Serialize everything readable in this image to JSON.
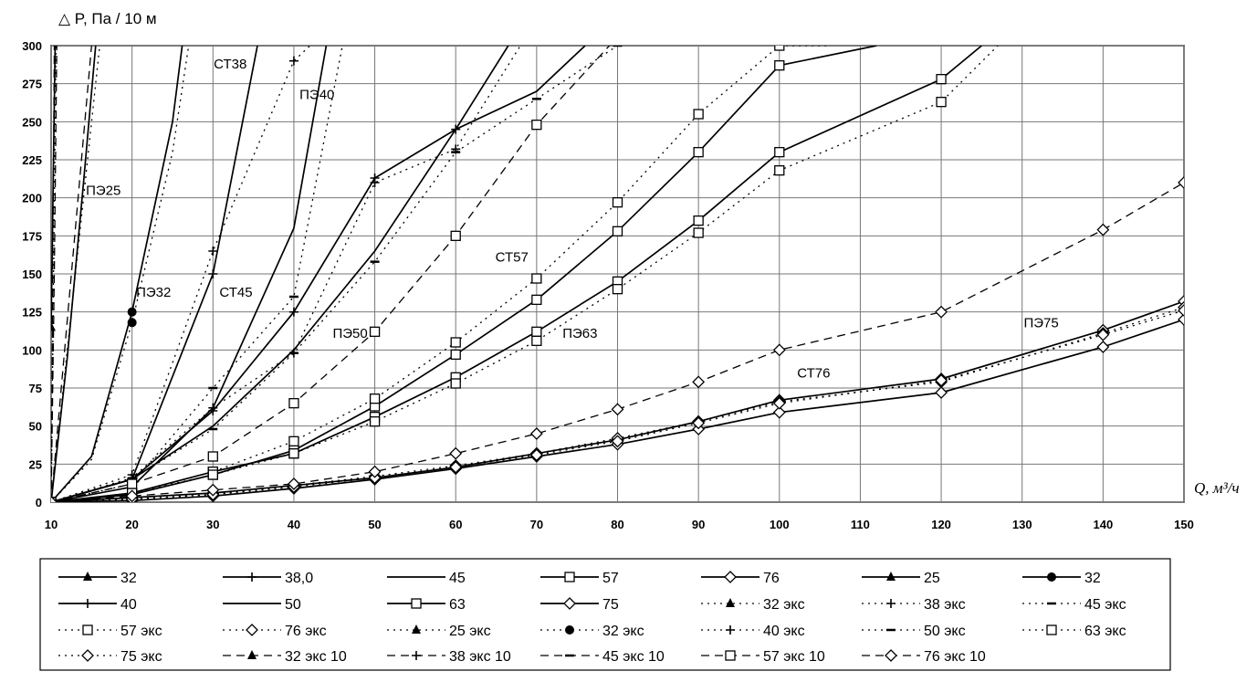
{
  "chart_data": {
    "type": "line",
    "ylabel": "△ P, Па / 10 м",
    "xlabel": "Q, м³/ч",
    "xlim": [
      10,
      150
    ],
    "ylim": [
      0,
      300
    ],
    "x_ticks": [
      "10",
      "20",
      "30",
      "40",
      "50",
      "60",
      "70",
      "80",
      "90",
      "100",
      "110",
      "120",
      "130",
      "140",
      "150"
    ],
    "y_ticks": [
      "0",
      "25",
      "50",
      "75",
      "100",
      "125",
      "150",
      "175",
      "200",
      "225",
      "250",
      "275",
      "300"
    ],
    "grid": true,
    "legend_position": "bottom",
    "annotations": [
      {
        "text": "ПЭ25",
        "q": 14.3,
        "p": 202
      },
      {
        "text": "ПЭ32",
        "q": 20.5,
        "p": 135
      },
      {
        "text": "СТ38",
        "q": 30.1,
        "p": 285
      },
      {
        "text": "ПЭ40",
        "q": 40.7,
        "p": 265
      },
      {
        "text": "СТ45",
        "q": 30.8,
        "p": 135
      },
      {
        "text": "ПЭ50",
        "q": 44.8,
        "p": 108
      },
      {
        "text": "СТ57",
        "q": 64.9,
        "p": 158
      },
      {
        "text": "ПЭ63",
        "q": 73.2,
        "p": 108
      },
      {
        "text": "СТ76",
        "q": 102.2,
        "p": 82
      },
      {
        "text": "ПЭ75",
        "q": 130.2,
        "p": 115
      }
    ],
    "series": [
      {
        "name": "32",
        "dash": "",
        "marker": "tri",
        "x": [
          10,
          12,
          14,
          15.5
        ],
        "y": [
          0,
          95,
          210,
          300
        ]
      },
      {
        "name": "38,0",
        "dash": "",
        "marker": "plus",
        "x": [
          10,
          20,
          30,
          35.5
        ],
        "y": [
          0,
          15,
          150,
          300
        ]
      },
      {
        "name": "45",
        "dash": "",
        "marker": "none",
        "x": [
          10,
          20,
          30,
          40,
          44
        ],
        "y": [
          0,
          10,
          62,
          180,
          300
        ]
      },
      {
        "name": "57",
        "dash": "",
        "marker": "sq",
        "x": [
          10,
          20,
          30,
          40,
          50,
          60,
          70,
          80,
          90,
          100,
          112
        ],
        "y": [
          0,
          5,
          18,
          34,
          63,
          97,
          133,
          178,
          230,
          287,
          300
        ]
      },
      {
        "name": "76",
        "dash": "",
        "marker": "dia",
        "x": [
          10,
          20,
          30,
          40,
          50,
          60,
          70,
          80,
          90,
          100,
          120,
          140,
          150
        ],
        "y": [
          0,
          1,
          4,
          9,
          15,
          22,
          30,
          38,
          48,
          59,
          72,
          102,
          120
        ]
      },
      {
        "name": "25",
        "dash": "",
        "marker": "tri",
        "x": [
          10,
          10.5
        ],
        "y": [
          115,
          300
        ]
      },
      {
        "name": "32",
        "dash": "",
        "marker": "circ",
        "x": [
          10,
          15,
          20,
          25,
          26.2
        ],
        "y": [
          0,
          30,
          125,
          250,
          300
        ]
      },
      {
        "name": "40",
        "dash": "",
        "marker": "plus",
        "x": [
          10,
          20,
          30,
          40,
          50,
          60,
          66.5
        ],
        "y": [
          0,
          15,
          60,
          125,
          213,
          245,
          300
        ]
      },
      {
        "name": "50",
        "dash": "",
        "marker": "none",
        "x": [
          10,
          20,
          30,
          40,
          50,
          60,
          70,
          76
        ],
        "y": [
          0,
          15,
          50,
          100,
          165,
          245,
          270,
          300
        ]
      },
      {
        "name": "63",
        "dash": "",
        "marker": "sq",
        "x": [
          10,
          20,
          30,
          40,
          50,
          60,
          70,
          80,
          90,
          100,
          120,
          125
        ],
        "y": [
          0,
          6,
          20,
          32,
          56,
          82,
          112,
          145,
          185,
          230,
          278,
          300
        ]
      },
      {
        "name": "75",
        "dash": "",
        "marker": "dia",
        "x": [
          10,
          20,
          30,
          40,
          50,
          60,
          70,
          80,
          90,
          100,
          120,
          140,
          150
        ],
        "y": [
          0,
          3,
          6,
          11,
          16,
          23,
          32,
          41,
          53,
          67,
          81,
          113,
          132
        ]
      },
      {
        "name": "32 экс",
        "dash": "2,5",
        "marker": "tri",
        "x": [
          10,
          12,
          14,
          16
        ],
        "y": [
          0,
          100,
          200,
          300
        ]
      },
      {
        "name": "38 экс",
        "dash": "2,5",
        "marker": "plus",
        "x": [
          10,
          20,
          30,
          40,
          42
        ],
        "y": [
          0,
          18,
          165,
          290,
          300
        ]
      },
      {
        "name": "45 экс",
        "dash": "2,5",
        "marker": "dash",
        "x": [
          10,
          20,
          30,
          40,
          46
        ],
        "y": [
          0,
          12,
          75,
          135,
          300
        ]
      },
      {
        "name": "57 экс",
        "dash": "2,5",
        "marker": "sq",
        "x": [
          10,
          20,
          30,
          40,
          50,
          60,
          70,
          80,
          90,
          100,
          106
        ],
        "y": [
          0,
          6,
          20,
          40,
          68,
          105,
          147,
          197,
          255,
          300,
          300
        ]
      },
      {
        "name": "76 экс",
        "dash": "2,5",
        "marker": "dia",
        "x": [
          10,
          20,
          30,
          40,
          50,
          60,
          70,
          80,
          90,
          100,
          120,
          140,
          150
        ],
        "y": [
          0,
          2,
          5,
          11,
          17,
          24,
          32,
          42,
          53,
          66,
          79,
          111,
          128
        ]
      },
      {
        "name": "25 экс",
        "dash": "2,5",
        "marker": "tri",
        "x": [
          10,
          10.6
        ],
        "y": [
          0,
          300
        ]
      },
      {
        "name": "32 экс",
        "dash": "2,5",
        "marker": "circ",
        "x": [
          10,
          15,
          20,
          25,
          27
        ],
        "y": [
          0,
          28,
          118,
          230,
          300
        ]
      },
      {
        "name": "40 экс",
        "dash": "2,5",
        "marker": "plus",
        "x": [
          10,
          20,
          30,
          40,
          50,
          60,
          68
        ],
        "y": [
          0,
          16,
          62,
          98,
          210,
          232,
          300
        ]
      },
      {
        "name": "50 экс",
        "dash": "2,5",
        "marker": "dash",
        "x": [
          10,
          20,
          30,
          40,
          50,
          60,
          70,
          80
        ],
        "y": [
          0,
          15,
          48,
          98,
          158,
          230,
          265,
          300
        ]
      },
      {
        "name": "63 экс",
        "dash": "2,5",
        "marker": "sq",
        "x": [
          10,
          20,
          30,
          40,
          50,
          60,
          70,
          80,
          90,
          100,
          120,
          127
        ],
        "y": [
          0,
          6,
          18,
          32,
          53,
          78,
          106,
          140,
          177,
          218,
          263,
          300
        ]
      },
      {
        "name": "75 экс",
        "dash": "2,5",
        "marker": "dia",
        "x": [
          10,
          20,
          30,
          40,
          50,
          60,
          70,
          80,
          90,
          100,
          120,
          140,
          150
        ],
        "y": [
          0,
          2,
          5,
          10,
          16,
          23,
          31,
          40,
          52,
          65,
          80,
          110,
          126
        ]
      },
      {
        "name": "32 экс 10",
        "dash": "9,6",
        "marker": "tri",
        "x": [
          10,
          10.4
        ],
        "y": [
          0,
          300
        ]
      },
      {
        "name": "38 экс 10",
        "dash": "9,6",
        "marker": "plus",
        "x": [
          10,
          12.5,
          15
        ],
        "y": [
          0,
          150,
          300
        ]
      },
      {
        "name": "45 экс 10",
        "dash": "9,6",
        "marker": "dash",
        "x": [
          10,
          10.4,
          10.7
        ],
        "y": [
          0,
          150,
          300
        ]
      },
      {
        "name": "57 экс 10",
        "dash": "9,6",
        "marker": "sq",
        "x": [
          10,
          20,
          30,
          40,
          50,
          60,
          70,
          79
        ],
        "y": [
          0,
          12,
          30,
          65,
          112,
          175,
          248,
          300
        ]
      },
      {
        "name": "76 экс 10",
        "dash": "9,6",
        "marker": "dia",
        "x": [
          10,
          20,
          30,
          40,
          50,
          60,
          70,
          80,
          90,
          100,
          120,
          140,
          150
        ],
        "y": [
          0,
          4,
          8,
          12,
          20,
          32,
          45,
          61,
          79,
          100,
          125,
          179,
          210
        ]
      }
    ]
  }
}
